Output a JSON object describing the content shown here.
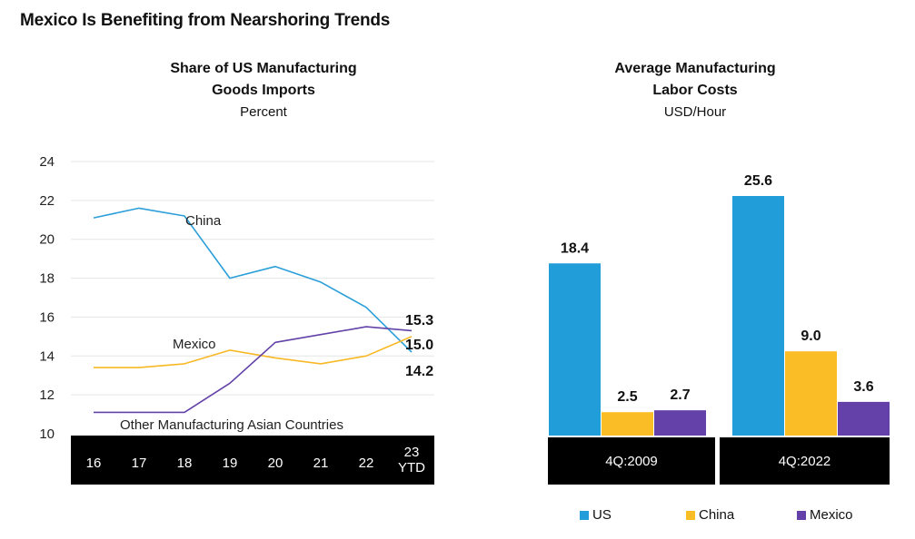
{
  "page": {
    "title": "Mexico Is Benefiting from Nearshoring Trends"
  },
  "chart_data": [
    {
      "type": "line",
      "title": "Share of US Manufacturing Goods Imports",
      "title_lines": [
        "Share of US Manufacturing",
        "Goods Imports"
      ],
      "unit": "Percent",
      "categories": [
        "16",
        "17",
        "18",
        "19",
        "20",
        "21",
        "22",
        "23 YTD"
      ],
      "category_lines": [
        [
          "16"
        ],
        [
          "17"
        ],
        [
          "18"
        ],
        [
          "19"
        ],
        [
          "20"
        ],
        [
          "21"
        ],
        [
          "22"
        ],
        [
          "23",
          "YTD"
        ]
      ],
      "ylim": [
        10,
        24
      ],
      "yticks": [
        10,
        12,
        14,
        16,
        18,
        20,
        22,
        24
      ],
      "grid": true,
      "series": [
        {
          "name": "China",
          "color": "#2B9FD9",
          "values": [
            21.1,
            21.6,
            21.2,
            18.0,
            18.6,
            17.8,
            16.5,
            14.2
          ],
          "end_label": "14.2"
        },
        {
          "name": "Mexico",
          "color": "#F9B824",
          "values": [
            13.4,
            13.4,
            13.6,
            14.3,
            13.9,
            13.6,
            14.0,
            15.0
          ],
          "end_label": "15.0"
        },
        {
          "name": "Other Manufacturing Asian Countries",
          "color": "#6342A8",
          "values": [
            11.1,
            11.1,
            11.1,
            12.6,
            14.7,
            15.1,
            15.5,
            15.3
          ],
          "end_label": "15.3"
        }
      ]
    },
    {
      "type": "bar",
      "title": "Average Manufacturing Labor Costs",
      "title_lines": [
        "Average Manufacturing",
        "Labor Costs"
      ],
      "unit": "USD/Hour",
      "categories": [
        "4Q:2009",
        "4Q:2022"
      ],
      "legend_position": "bottom",
      "series": [
        {
          "name": "US",
          "color": "#219ED9",
          "values": [
            18.4,
            25.6
          ],
          "labels": [
            "18.4",
            "25.6"
          ]
        },
        {
          "name": "China",
          "color": "#FBBD26",
          "values": [
            2.5,
            9.0
          ],
          "labels": [
            "2.5",
            "9.0"
          ]
        },
        {
          "name": "Mexico",
          "color": "#6341A8",
          "values": [
            2.7,
            3.6
          ],
          "labels": [
            "2.7",
            "3.6"
          ]
        }
      ]
    }
  ]
}
